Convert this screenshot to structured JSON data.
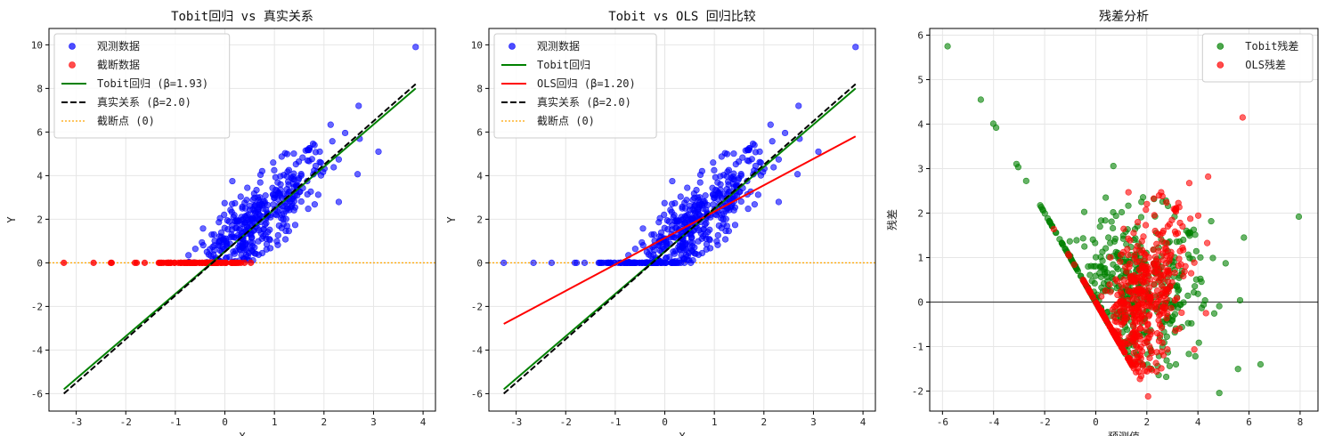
{
  "colors": {
    "observed": "#0000ff",
    "censored": "#ff0000",
    "tobit_line": "#008000",
    "true_line": "#000000",
    "ols_line": "#ff0000",
    "censor_point": "#ffa500",
    "tobit_resid": "#008000",
    "ols_resid": "#ff0000",
    "grid": "#e6e6e6"
  },
  "chart_data": [
    {
      "type": "scatter",
      "title": "Tobit回归 vs 真实关系",
      "xlabel": "X",
      "ylabel": "Y",
      "xlim": [
        -3.55,
        4.25
      ],
      "ylim": [
        -6.8,
        10.75
      ],
      "xticks": [
        -3,
        -2,
        -1,
        0,
        1,
        2,
        3,
        4
      ],
      "yticks": [
        -6,
        -4,
        -2,
        0,
        2,
        4,
        6,
        8,
        10
      ],
      "grid": true,
      "legend_position": "top-left",
      "series": [
        {
          "name": "观测数据",
          "kind": "scatter",
          "color_key": "observed",
          "generator": "observed",
          "extra_points": [
            [
              3.85,
              9.9
            ],
            [
              2.7,
              7.2
            ],
            [
              3.1,
              5.1
            ]
          ]
        },
        {
          "name": "截断数据",
          "kind": "scatter",
          "color_key": "censored",
          "generator": "censored",
          "extra_points": [
            [
              -3.25,
              0.0
            ],
            [
              -2.65,
              0.0
            ],
            [
              -2.3,
              0.0
            ]
          ]
        },
        {
          "name": "Tobit回归 (β=1.93)",
          "kind": "line",
          "color_key": "tobit_line",
          "dash": "solid",
          "x": [
            -3.25,
            3.85
          ],
          "y": [
            -5.8,
            8.0
          ]
        },
        {
          "name": "真实关系 (β=2.0)",
          "kind": "line",
          "color_key": "true_line",
          "dash": "dashed",
          "x": [
            -3.25,
            3.85
          ],
          "y": [
            -6.0,
            8.2
          ]
        },
        {
          "name": "截断点 (0)",
          "kind": "hline",
          "color_key": "censor_point",
          "dash": "dotted",
          "y": 0
        }
      ]
    },
    {
      "type": "scatter",
      "title": "Tobit vs OLS 回归比较",
      "xlabel": "X",
      "ylabel": "Y",
      "xlim": [
        -3.55,
        4.25
      ],
      "ylim": [
        -6.8,
        10.75
      ],
      "xticks": [
        -3,
        -2,
        -1,
        0,
        1,
        2,
        3,
        4
      ],
      "yticks": [
        -6,
        -4,
        -2,
        0,
        2,
        4,
        6,
        8,
        10
      ],
      "grid": true,
      "legend_position": "top-left",
      "series": [
        {
          "name": "观测数据",
          "kind": "scatter",
          "color_key": "observed",
          "generator": "all",
          "extra_points": [
            [
              3.85,
              9.9
            ],
            [
              2.7,
              7.2
            ],
            [
              3.1,
              5.1
            ],
            [
              -3.25,
              0.0
            ],
            [
              -2.65,
              0.0
            ]
          ]
        },
        {
          "name": "Tobit回归",
          "kind": "line",
          "color_key": "tobit_line",
          "dash": "solid",
          "x": [
            -3.25,
            3.85
          ],
          "y": [
            -5.8,
            8.0
          ]
        },
        {
          "name": "OLS回归 (β=1.20)",
          "kind": "line",
          "color_key": "ols_line",
          "dash": "solid",
          "x": [
            -3.25,
            3.85
          ],
          "y": [
            -2.8,
            5.8
          ]
        },
        {
          "name": "真实关系 (β=2.0)",
          "kind": "line",
          "color_key": "true_line",
          "dash": "dashed",
          "x": [
            -3.25,
            3.85
          ],
          "y": [
            -6.0,
            8.2
          ]
        },
        {
          "name": "截断点 (0)",
          "kind": "hline",
          "color_key": "censor_point",
          "dash": "dotted",
          "y": 0
        }
      ]
    },
    {
      "type": "scatter",
      "title": "残差分析",
      "xlabel": "预测值",
      "ylabel": "残差",
      "xlim": [
        -6.5,
        8.7
      ],
      "ylim": [
        -2.45,
        6.15
      ],
      "xticks": [
        -6,
        -4,
        -2,
        0,
        2,
        4,
        6,
        8
      ],
      "yticks": [
        -2,
        -1,
        0,
        1,
        2,
        3,
        4,
        5,
        6
      ],
      "grid": true,
      "legend_position": "top-right",
      "series": [
        {
          "name": "Tobit残差",
          "kind": "scatter",
          "color_key": "tobit_resid",
          "generator": "tobit_resid",
          "extra_points": [
            [
              -5.8,
              5.75
            ],
            [
              -4.5,
              4.55
            ],
            [
              -3.9,
              3.92
            ],
            [
              7.95,
              1.92
            ],
            [
              6.45,
              -1.4
            ],
            [
              5.8,
              1.45
            ]
          ]
        },
        {
          "name": "OLS残差",
          "kind": "scatter",
          "color_key": "ols_resid",
          "generator": "ols_resid",
          "extra_points": [
            [
              5.75,
              4.15
            ],
            [
              4.4,
              2.82
            ],
            [
              2.05,
              -2.12
            ]
          ]
        },
        {
          "name": "",
          "kind": "hline",
          "color_key": "true_line",
          "dash": "solid",
          "y": 0,
          "no_legend": true
        }
      ]
    }
  ]
}
